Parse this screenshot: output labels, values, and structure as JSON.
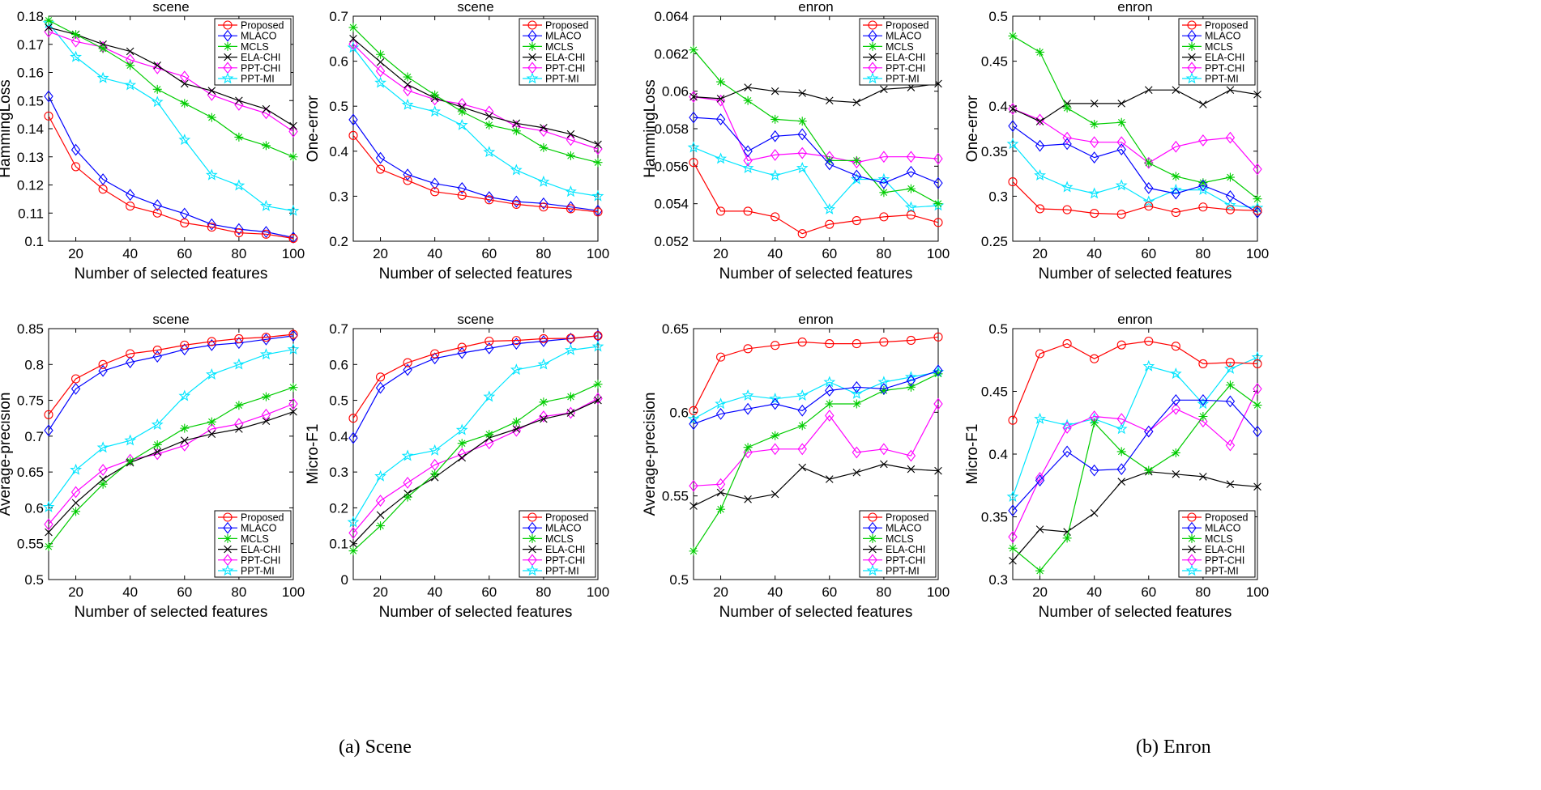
{
  "colors": {
    "Proposed": "#ff0000",
    "MLACO": "#0000ff",
    "MCLS": "#00cc00",
    "ELA-CHI": "#000000",
    "PPT-CHI": "#ff00ff",
    "PPT-MI": "#00e5ff"
  },
  "markers": {
    "Proposed": "circle",
    "MLACO": "diamond",
    "MCLS": "asterisk",
    "ELA-CHI": "x",
    "PPT-CHI": "diamond",
    "PPT-MI": "star"
  },
  "captions": [
    "(a) Scene",
    "(b) Enron"
  ],
  "chart_data": [
    {
      "type": "line",
      "title": "scene",
      "xlabel": "Number of selected features",
      "ylabel": "HammingLoss",
      "x": [
        10,
        20,
        30,
        40,
        50,
        60,
        70,
        80,
        90,
        100
      ],
      "xlim": [
        10,
        100
      ],
      "xticks": [
        "20",
        "40",
        "60",
        "80",
        "100"
      ],
      "ylim": [
        0.1,
        0.18
      ],
      "yticks": [
        "0.1",
        "0.11",
        "0.12",
        "0.13",
        "0.14",
        "0.15",
        "0.16",
        "0.17",
        "0.18"
      ],
      "legend_position": "top-right",
      "series": [
        {
          "name": "Proposed",
          "values": [
            0.1445,
            0.1265,
            0.1185,
            0.1125,
            0.11,
            0.1065,
            0.105,
            0.103,
            0.1025,
            0.101
          ]
        },
        {
          "name": "MLACO",
          "values": [
            0.1515,
            0.1325,
            0.122,
            0.1165,
            0.1128,
            0.1098,
            0.106,
            0.1043,
            0.1033,
            0.1013
          ]
        },
        {
          "name": "MCLS",
          "values": [
            0.1785,
            0.1735,
            0.1685,
            0.1625,
            0.154,
            0.149,
            0.144,
            0.137,
            0.134,
            0.13
          ]
        },
        {
          "name": "ELA-CHI",
          "values": [
            0.176,
            0.1735,
            0.17,
            0.1675,
            0.1625,
            0.156,
            0.1535,
            0.15,
            0.147,
            0.141
          ]
        },
        {
          "name": "PPT-CHI",
          "values": [
            0.1745,
            0.171,
            0.169,
            0.1645,
            0.1615,
            0.1585,
            0.152,
            0.1485,
            0.1455,
            0.139
          ]
        },
        {
          "name": "PPT-MI",
          "values": [
            0.1775,
            0.1655,
            0.158,
            0.1555,
            0.1495,
            0.136,
            0.1235,
            0.1198,
            0.1125,
            0.1108
          ]
        }
      ]
    },
    {
      "type": "line",
      "title": "scene",
      "xlabel": "Number of selected features",
      "ylabel": "One-error",
      "x": [
        10,
        20,
        30,
        40,
        50,
        60,
        70,
        80,
        90,
        100
      ],
      "xlim": [
        10,
        100
      ],
      "xticks": [
        "20",
        "40",
        "60",
        "80",
        "100"
      ],
      "ylim": [
        0.2,
        0.7
      ],
      "yticks": [
        "0.2",
        "0.3",
        "0.4",
        "0.5",
        "0.6",
        "0.7"
      ],
      "legend_position": "top-right",
      "series": [
        {
          "name": "Proposed",
          "values": [
            0.435,
            0.36,
            0.335,
            0.31,
            0.302,
            0.292,
            0.282,
            0.276,
            0.272,
            0.265
          ]
        },
        {
          "name": "MLACO",
          "values": [
            0.47,
            0.385,
            0.348,
            0.328,
            0.318,
            0.298,
            0.288,
            0.284,
            0.276,
            0.268
          ]
        },
        {
          "name": "MCLS",
          "values": [
            0.675,
            0.615,
            0.565,
            0.525,
            0.488,
            0.458,
            0.445,
            0.408,
            0.39,
            0.375
          ]
        },
        {
          "name": "ELA-CHI",
          "values": [
            0.65,
            0.598,
            0.548,
            0.518,
            0.498,
            0.478,
            0.462,
            0.452,
            0.438,
            0.415
          ]
        },
        {
          "name": "PPT-CHI",
          "values": [
            0.638,
            0.578,
            0.535,
            0.515,
            0.505,
            0.488,
            0.455,
            0.445,
            0.425,
            0.405
          ]
        },
        {
          "name": "PPT-MI",
          "values": [
            0.63,
            0.552,
            0.503,
            0.488,
            0.458,
            0.398,
            0.358,
            0.332,
            0.31,
            0.3
          ]
        }
      ]
    },
    {
      "type": "line",
      "title": "enron",
      "xlabel": "Number of selected features",
      "ylabel": "HammingLoss",
      "x": [
        10,
        20,
        30,
        40,
        50,
        60,
        70,
        80,
        90,
        100
      ],
      "xlim": [
        10,
        100
      ],
      "xticks": [
        "20",
        "40",
        "60",
        "80",
        "100"
      ],
      "ylim": [
        0.052,
        0.064
      ],
      "yticks": [
        "0.052",
        "0.054",
        "0.056",
        "0.058",
        "0.06",
        "0.062",
        "0.064"
      ],
      "legend_position": "top-right",
      "series": [
        {
          "name": "Proposed",
          "values": [
            0.0562,
            0.0536,
            0.0536,
            0.0533,
            0.0524,
            0.0529,
            0.0531,
            0.0533,
            0.0534,
            0.053
          ]
        },
        {
          "name": "MLACO",
          "values": [
            0.0586,
            0.0585,
            0.0568,
            0.0576,
            0.0577,
            0.0561,
            0.0555,
            0.0551,
            0.0557,
            0.0551
          ]
        },
        {
          "name": "MCLS",
          "values": [
            0.0622,
            0.0605,
            0.0595,
            0.0585,
            0.0584,
            0.0563,
            0.0563,
            0.0546,
            0.0548,
            0.054
          ]
        },
        {
          "name": "ELA-CHI",
          "values": [
            0.0597,
            0.0596,
            0.0602,
            0.06,
            0.0599,
            0.0595,
            0.0594,
            0.0601,
            0.0602,
            0.0604
          ]
        },
        {
          "name": "PPT-CHI",
          "values": [
            0.0597,
            0.0595,
            0.0563,
            0.0566,
            0.0567,
            0.0565,
            0.0562,
            0.0565,
            0.0565,
            0.0564
          ]
        },
        {
          "name": "PPT-MI",
          "values": [
            0.057,
            0.0564,
            0.0559,
            0.0555,
            0.0559,
            0.0537,
            0.0553,
            0.0553,
            0.0538,
            0.0539
          ]
        }
      ]
    },
    {
      "type": "line",
      "title": "enron",
      "xlabel": "Number of selected features",
      "ylabel": "One-error",
      "x": [
        10,
        20,
        30,
        40,
        50,
        60,
        70,
        80,
        90,
        100
      ],
      "xlim": [
        10,
        100
      ],
      "xticks": [
        "20",
        "40",
        "60",
        "80",
        "100"
      ],
      "ylim": [
        0.25,
        0.5
      ],
      "yticks": [
        "0.25",
        "0.3",
        "0.35",
        "0.4",
        "0.45",
        "0.5"
      ],
      "legend_position": "top-right",
      "series": [
        {
          "name": "Proposed",
          "values": [
            0.316,
            0.286,
            0.285,
            0.281,
            0.28,
            0.289,
            0.282,
            0.288,
            0.285,
            0.284
          ]
        },
        {
          "name": "MLACO",
          "values": [
            0.378,
            0.356,
            0.358,
            0.343,
            0.352,
            0.309,
            0.303,
            0.312,
            0.3,
            0.282
          ]
        },
        {
          "name": "MCLS",
          "values": [
            0.478,
            0.46,
            0.398,
            0.38,
            0.382,
            0.337,
            0.322,
            0.315,
            0.321,
            0.297
          ]
        },
        {
          "name": "ELA-CHI",
          "values": [
            0.397,
            0.383,
            0.403,
            0.403,
            0.403,
            0.418,
            0.418,
            0.402,
            0.418,
            0.413
          ]
        },
        {
          "name": "PPT-CHI",
          "values": [
            0.397,
            0.385,
            0.365,
            0.36,
            0.36,
            0.337,
            0.355,
            0.362,
            0.365,
            0.33
          ]
        },
        {
          "name": "PPT-MI",
          "values": [
            0.358,
            0.323,
            0.31,
            0.303,
            0.312,
            0.294,
            0.307,
            0.307,
            0.29,
            0.287
          ]
        }
      ]
    },
    {
      "type": "line",
      "title": "scene",
      "xlabel": "Number of selected features",
      "ylabel": "Average-precision",
      "x": [
        10,
        20,
        30,
        40,
        50,
        60,
        70,
        80,
        90,
        100
      ],
      "xlim": [
        10,
        100
      ],
      "xticks": [
        "20",
        "40",
        "60",
        "80",
        "100"
      ],
      "ylim": [
        0.5,
        0.85
      ],
      "yticks": [
        "0.5",
        "0.55",
        "0.6",
        "0.65",
        "0.7",
        "0.75",
        "0.8",
        "0.85"
      ],
      "legend_position": "bottom-right",
      "series": [
        {
          "name": "Proposed",
          "values": [
            0.73,
            0.78,
            0.8,
            0.815,
            0.82,
            0.827,
            0.832,
            0.836,
            0.838,
            0.842
          ]
        },
        {
          "name": "MLACO",
          "values": [
            0.708,
            0.766,
            0.791,
            0.803,
            0.811,
            0.821,
            0.827,
            0.83,
            0.835,
            0.84
          ]
        },
        {
          "name": "MCLS",
          "values": [
            0.546,
            0.595,
            0.633,
            0.665,
            0.688,
            0.711,
            0.72,
            0.743,
            0.755,
            0.768
          ]
        },
        {
          "name": "ELA-CHI",
          "values": [
            0.566,
            0.607,
            0.64,
            0.663,
            0.678,
            0.694,
            0.703,
            0.71,
            0.721,
            0.734
          ]
        },
        {
          "name": "PPT-CHI",
          "values": [
            0.577,
            0.622,
            0.653,
            0.667,
            0.675,
            0.687,
            0.71,
            0.717,
            0.73,
            0.745
          ]
        },
        {
          "name": "PPT-MI",
          "values": [
            0.601,
            0.653,
            0.684,
            0.694,
            0.716,
            0.756,
            0.786,
            0.8,
            0.814,
            0.821
          ]
        }
      ]
    },
    {
      "type": "line",
      "title": "scene",
      "xlabel": "Number of selected features",
      "ylabel": "Micro-F1",
      "x": [
        10,
        20,
        30,
        40,
        50,
        60,
        70,
        80,
        90,
        100
      ],
      "xlim": [
        10,
        100
      ],
      "xticks": [
        "20",
        "40",
        "60",
        "80",
        "100"
      ],
      "ylim": [
        0,
        0.7
      ],
      "yticks": [
        "0",
        "0.1",
        "0.2",
        "0.3",
        "0.4",
        "0.5",
        "0.6",
        "0.7"
      ],
      "legend_position": "bottom-right",
      "series": [
        {
          "name": "Proposed",
          "values": [
            0.45,
            0.565,
            0.605,
            0.63,
            0.648,
            0.665,
            0.667,
            0.672,
            0.673,
            0.68
          ]
        },
        {
          "name": "MLACO",
          "values": [
            0.395,
            0.535,
            0.585,
            0.617,
            0.632,
            0.645,
            0.658,
            0.665,
            0.672,
            0.68
          ]
        },
        {
          "name": "MCLS",
          "values": [
            0.08,
            0.15,
            0.23,
            0.295,
            0.38,
            0.405,
            0.44,
            0.495,
            0.51,
            0.545
          ]
        },
        {
          "name": "ELA-CHI",
          "values": [
            0.1,
            0.18,
            0.24,
            0.285,
            0.34,
            0.395,
            0.42,
            0.448,
            0.465,
            0.5
          ]
        },
        {
          "name": "PPT-CHI",
          "values": [
            0.13,
            0.22,
            0.27,
            0.32,
            0.35,
            0.38,
            0.415,
            0.455,
            0.465,
            0.505
          ]
        },
        {
          "name": "PPT-MI",
          "values": [
            0.16,
            0.288,
            0.345,
            0.36,
            0.417,
            0.51,
            0.585,
            0.6,
            0.64,
            0.65
          ]
        }
      ]
    },
    {
      "type": "line",
      "title": "enron",
      "xlabel": "Number of selected features",
      "ylabel": "Average-precision",
      "x": [
        10,
        20,
        30,
        40,
        50,
        60,
        70,
        80,
        90,
        100
      ],
      "xlim": [
        10,
        100
      ],
      "xticks": [
        "20",
        "40",
        "60",
        "80",
        "100"
      ],
      "ylim": [
        0.5,
        0.65
      ],
      "yticks": [
        "0.5",
        "0.55",
        "0.6",
        "0.65"
      ],
      "legend_position": "bottom-right",
      "series": [
        {
          "name": "Proposed",
          "values": [
            0.601,
            0.633,
            0.638,
            0.64,
            0.642,
            0.641,
            0.641,
            0.642,
            0.643,
            0.645
          ]
        },
        {
          "name": "MLACO",
          "values": [
            0.593,
            0.599,
            0.602,
            0.605,
            0.601,
            0.613,
            0.615,
            0.614,
            0.619,
            0.625
          ]
        },
        {
          "name": "MCLS",
          "values": [
            0.517,
            0.542,
            0.579,
            0.586,
            0.592,
            0.605,
            0.605,
            0.613,
            0.615,
            0.623
          ]
        },
        {
          "name": "ELA-CHI",
          "values": [
            0.544,
            0.552,
            0.548,
            0.551,
            0.567,
            0.56,
            0.564,
            0.569,
            0.566,
            0.565
          ]
        },
        {
          "name": "PPT-CHI",
          "values": [
            0.556,
            0.557,
            0.576,
            0.578,
            0.578,
            0.598,
            0.576,
            0.578,
            0.574,
            0.605
          ]
        },
        {
          "name": "PPT-MI",
          "values": [
            0.596,
            0.605,
            0.61,
            0.608,
            0.61,
            0.618,
            0.611,
            0.618,
            0.621,
            0.624
          ]
        }
      ]
    },
    {
      "type": "line",
      "title": "enron",
      "xlabel": "Number of selected features",
      "ylabel": "Micro-F1",
      "x": [
        10,
        20,
        30,
        40,
        50,
        60,
        70,
        80,
        90,
        100
      ],
      "xlim": [
        10,
        100
      ],
      "xticks": [
        "20",
        "40",
        "60",
        "80",
        "100"
      ],
      "ylim": [
        0.3,
        0.5
      ],
      "yticks": [
        "0.3",
        "0.35",
        "0.4",
        "0.45",
        "0.5"
      ],
      "legend_position": "bottom-right",
      "series": [
        {
          "name": "Proposed",
          "values": [
            0.427,
            0.48,
            0.488,
            0.476,
            0.487,
            0.49,
            0.486,
            0.472,
            0.473,
            0.472
          ]
        },
        {
          "name": "MLACO",
          "values": [
            0.355,
            0.379,
            0.402,
            0.387,
            0.388,
            0.418,
            0.443,
            0.443,
            0.442,
            0.418
          ]
        },
        {
          "name": "MCLS",
          "values": [
            0.325,
            0.307,
            0.333,
            0.425,
            0.402,
            0.387,
            0.401,
            0.43,
            0.455,
            0.439
          ]
        },
        {
          "name": "ELA-CHI",
          "values": [
            0.315,
            0.34,
            0.338,
            0.353,
            0.378,
            0.386,
            0.384,
            0.382,
            0.376,
            0.374
          ]
        },
        {
          "name": "PPT-CHI",
          "values": [
            0.334,
            0.381,
            0.421,
            0.43,
            0.428,
            0.418,
            0.436,
            0.426,
            0.407,
            0.452
          ]
        },
        {
          "name": "PPT-MI",
          "values": [
            0.366,
            0.428,
            0.423,
            0.428,
            0.42,
            0.47,
            0.464,
            0.44,
            0.468,
            0.477
          ]
        }
      ]
    }
  ]
}
